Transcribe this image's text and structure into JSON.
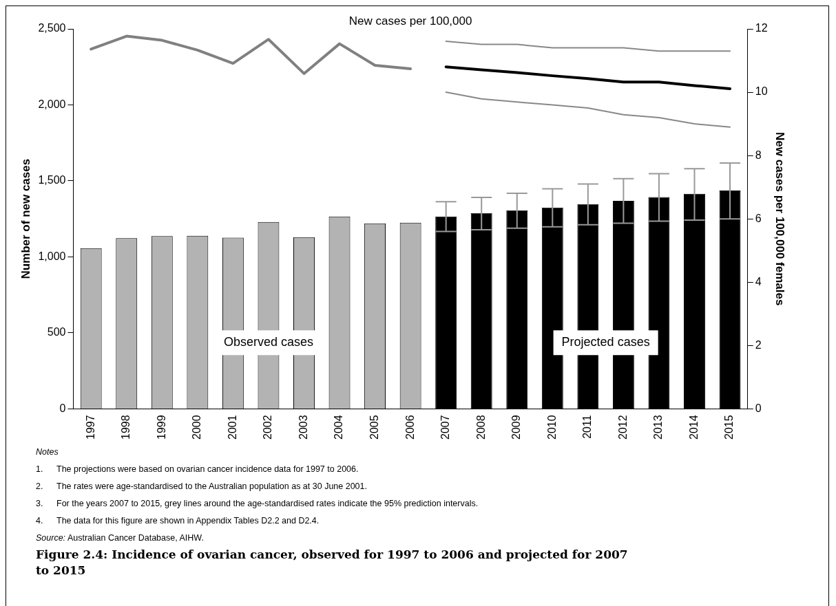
{
  "chart_data": {
    "type": "bar",
    "title": "Figure 2.4: Incidence of ovarian cancer, observed for 1997 to 2006 and projected for 2007 to 2015",
    "subtitle": "New cases per 100,000",
    "ylabel": "Number of new cases",
    "y2label": "New cases per 100,000 females",
    "categories": [
      "1997",
      "1998",
      "1999",
      "2000",
      "2001",
      "2002",
      "2003",
      "2004",
      "2005",
      "2006",
      "2007",
      "2008",
      "2009",
      "2010",
      "2011",
      "2012",
      "2013",
      "2014",
      "2015"
    ],
    "series": [
      {
        "colors": [
          "#b3b3b3",
          "#b3b3b3",
          "#b3b3b3",
          "#b3b3b3",
          "#b3b3b3",
          "#b3b3b3",
          "#b3b3b3",
          "#b3b3b3",
          "#b3b3b3",
          "#b3b3b3",
          "#000000",
          "#000000",
          "#000000",
          "#000000",
          "#000000",
          "#000000",
          "#000000",
          "#000000",
          "#000000"
        ],
        "values": [
          1057,
          1123,
          1137,
          1139,
          1126,
          1229,
          1130,
          1266,
          1220,
          1225,
          1266,
          1288,
          1306,
          1325,
          1347,
          1369,
          1393,
          1415,
          1437
        ],
        "errors": [
          null,
          null,
          null,
          null,
          null,
          null,
          null,
          null,
          null,
          null,
          [
            1167,
            1363
          ],
          [
            1178,
            1391
          ],
          [
            1189,
            1418
          ],
          [
            1198,
            1448
          ],
          [
            1211,
            1479
          ],
          [
            1222,
            1514
          ],
          [
            1235,
            1547
          ],
          [
            1242,
            1580
          ],
          [
            1250,
            1617
          ]
        ]
      },
      {
        "type": "line",
        "axis": "y2",
        "color": "#808080",
        "values": [
          11.36,
          11.77,
          11.64,
          11.33,
          10.91,
          11.67,
          10.59,
          11.53,
          10.85,
          10.74,
          null,
          null,
          null,
          null,
          null,
          null,
          null,
          null,
          null
        ]
      },
      {
        "type": "line",
        "axis": "y2",
        "color": "#000000",
        "values": [
          null,
          null,
          null,
          null,
          null,
          null,
          null,
          null,
          null,
          null,
          10.8,
          10.71,
          10.62,
          10.52,
          10.43,
          10.32,
          10.32,
          10.21,
          10.11
        ]
      },
      {
        "type": "line",
        "axis": "y2",
        "color": "#888888",
        "values": [
          null,
          null,
          null,
          null,
          null,
          null,
          null,
          null,
          null,
          null,
          10.0,
          9.79,
          9.69,
          9.6,
          9.5,
          9.29,
          9.2,
          9.0,
          8.9
        ]
      },
      {
        "type": "line",
        "axis": "y2",
        "color": "#888888",
        "values": [
          null,
          null,
          null,
          null,
          null,
          null,
          null,
          null,
          null,
          null,
          11.61,
          11.51,
          11.51,
          11.4,
          11.4,
          11.4,
          11.3,
          11.3,
          11.3
        ]
      }
    ],
    "ylim": [
      0,
      2500
    ],
    "yticks": [
      0,
      500,
      {
        "value": 1000,
        "label": "1,000"
      },
      {
        "value": 1500,
        "label": "1,500"
      },
      {
        "value": 2000,
        "label": "2,000"
      },
      {
        "value": 2500,
        "label": "2,500"
      }
    ],
    "y2lim": [
      0,
      12
    ],
    "y2ticks": [
      0,
      2,
      4,
      6,
      8,
      10,
      12
    ],
    "grid": false,
    "legend": false,
    "marker": "none",
    "line_style": "solid",
    "annotations": [
      "Observed cases",
      "Projected cases",
      "Notes",
      "1.\tThe projections were based on ovarian cancer incidence data for 1997 to 2006.",
      "2.\tThe rates were age-standardised to the Australian population as at 30 June 2001.",
      "3.\tFor the years 2007 to 2015, grey lines around the age-standardised rates indicate the 95% prediction intervals.",
      "4.\tThe data for this figure are shown in Appendix Tables D2.2 and D2.4.",
      "Source: Australian Cancer Database, AIHW."
    ]
  }
}
